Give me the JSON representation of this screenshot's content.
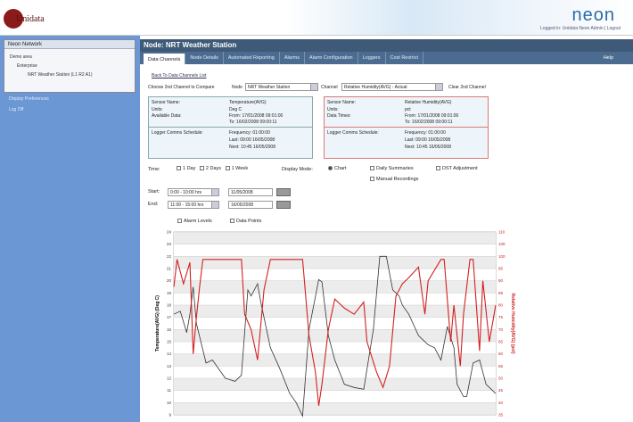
{
  "header": {
    "brand": "Unidata",
    "product": "neon",
    "login_text": "Logged in: Unidata Neon Admin | Logout"
  },
  "sidebar": {
    "panel_title": "Neon Network",
    "tree": [
      "Demo area",
      "Enterprise",
      "NRT Weather Station (L1 R2 A1)"
    ],
    "links": [
      "Display Preferences",
      "Log Off"
    ]
  },
  "node_title": "Node: NRT Weather Station",
  "tabs": [
    {
      "label": "Data Channels",
      "active": true
    },
    {
      "label": "Node Details"
    },
    {
      "label": "Automated Reporting"
    },
    {
      "label": "Alarms"
    },
    {
      "label": "Alarm Configuration"
    },
    {
      "label": "Loggers"
    },
    {
      "label": "Cost Restrict"
    }
  ],
  "help_label": "Help",
  "controls": {
    "back_link": "Back To Data Channels List",
    "compare_label": "Choose 2nd Channel to Compare",
    "node_label": "Node",
    "node_value": "NRT Weather Station",
    "channel_label": "Channel",
    "channel_value": "Relative Humidity(AVG) - Actual",
    "clear_label": "Clear 2nd Channel"
  },
  "info_left": {
    "sensor_label": "Sensor Name:",
    "sensor": "Temperature(AVG)",
    "units_label": "Units:",
    "units": "Deg C",
    "avail_label": "Available Data:",
    "from": "From: 17/01/2008 09:01:00",
    "to": "To: 16/02/2008 09:00:11",
    "sched_label": "Logger Comms Schedule:",
    "freq": "Frequency: 01:00:00",
    "last": "Last: 09:00 16/05/2008",
    "next": "Next: 10:45 16/05/2008"
  },
  "info_right": {
    "sensor_label": "Sensor Name:",
    "sensor": "Relative Humidity(AVG)",
    "units_label": "Units:",
    "units": "pct",
    "avail_label": "Data Times:",
    "from": "From: 17/01/2008 09:01:00",
    "to": "To: 16/02/2008 09:00:11",
    "sched_label": "Logger Comms Schedule:",
    "freq": "Frequency: 01:00:00",
    "last": "Last: 09:00 16/05/2008",
    "next": "Next: 10:45 16/05/2008"
  },
  "time": {
    "label": "Time:",
    "options": [
      "1 Day",
      "2 Days",
      "1 Week"
    ]
  },
  "display": {
    "label": "Display Mode:",
    "chart": "Chart",
    "daily": "Daily Summaries",
    "dst": "DST Adjustment",
    "manual": "Manual Recordings"
  },
  "start": {
    "label": "Start:",
    "time": "0:00 - 10:00 hrs",
    "date": "11/05/2008"
  },
  "end": {
    "label": "End:",
    "time": "11:00 - 15:00 hrs",
    "date": "16/05/2008"
  },
  "chart_opts": {
    "alarm": "Alarm Levels",
    "points": "Data Points"
  },
  "chart_data": {
    "type": "line",
    "ylabel": "Temperature(AVG) (Deg C)",
    "y2label": "Relative Humidity(AVG) (pct)",
    "ylim": [
      9,
      24
    ],
    "y2lim": [
      35,
      110
    ],
    "yticks": [
      24,
      23,
      22,
      21,
      20,
      19,
      18,
      17,
      16,
      15,
      14,
      13,
      12,
      11,
      10,
      9
    ],
    "y2ticks": [
      110,
      105,
      100,
      95,
      90,
      85,
      80,
      75,
      70,
      65,
      60,
      55,
      50,
      45,
      40,
      35
    ],
    "grid": true,
    "series": [
      {
        "axis": "left",
        "color": "#333333",
        "x": [
          0,
          2,
          4,
          5,
          6,
          7,
          10,
          12,
          16,
          19,
          21,
          23,
          24,
          26,
          27,
          30,
          33,
          36,
          38,
          40,
          42,
          45,
          46,
          48,
          50,
          53,
          56,
          59,
          62,
          64,
          66,
          68,
          70,
          71,
          73,
          76,
          79,
          81,
          83,
          85,
          87,
          88,
          90,
          91,
          93,
          95,
          97,
          100
        ],
        "values": [
          17.25,
          17.5,
          15.75,
          17.25,
          19.5,
          16.5,
          13.25,
          13.5,
          12,
          11.75,
          12.25,
          19.25,
          18.75,
          19.75,
          18.25,
          14.5,
          12.75,
          10.75,
          10,
          8.9,
          16,
          20.1,
          19.9,
          15.5,
          13.5,
          11.5,
          11.25,
          11.1,
          16,
          22,
          22,
          19.25,
          18.75,
          18,
          17.25,
          15.5,
          14.75,
          14.5,
          13.5,
          16.25,
          14.5,
          11.5,
          10.5,
          10.5,
          13.25,
          13.5,
          11.5,
          10.75
        ]
      },
      {
        "axis": "right",
        "color": "#d42020",
        "x": [
          0,
          1,
          3,
          5,
          6,
          7,
          8,
          9,
          21,
          22,
          24,
          26,
          28,
          30,
          40,
          42,
          44,
          45,
          46,
          48,
          50,
          53,
          56,
          59,
          60,
          63,
          65,
          67,
          69,
          71,
          73,
          76,
          78,
          79,
          83,
          84,
          86,
          87,
          89,
          90,
          92,
          93,
          95,
          96,
          98,
          100
        ],
        "values": [
          87.5,
          98.75,
          88.75,
          97.5,
          60,
          75,
          87.5,
          98.75,
          98.75,
          76.25,
          70,
          57.5,
          86.25,
          98.75,
          98.75,
          67.5,
          52.5,
          38.75,
          47.5,
          70,
          82.5,
          78.75,
          76.25,
          81.25,
          65,
          52.5,
          46.25,
          55,
          83.75,
          88.75,
          91.25,
          95.6,
          76.25,
          90,
          98.75,
          98.75,
          65,
          80,
          55,
          76.25,
          98.75,
          98.75,
          61.25,
          90,
          65,
          80
        ]
      }
    ]
  }
}
